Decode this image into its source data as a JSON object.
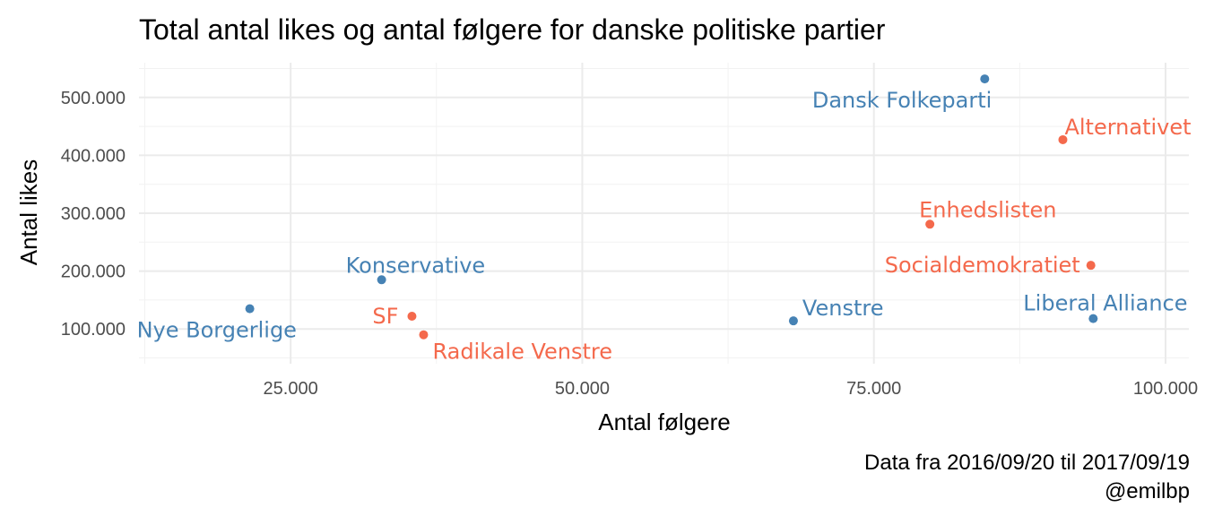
{
  "chart_data": {
    "type": "scatter",
    "title": "Total antal likes og antal følgere for danske politiske partier",
    "xlabel": "Antal følgere",
    "ylabel": "Antal likes",
    "xlim": [
      12000,
      102000
    ],
    "ylim": [
      40000,
      560000
    ],
    "x_ticks": [
      25000,
      50000,
      75000,
      100000
    ],
    "x_tick_labels": [
      "25.000",
      "50.000",
      "75.000",
      "100.000"
    ],
    "y_ticks": [
      100000,
      200000,
      300000,
      400000,
      500000
    ],
    "y_tick_labels": [
      "100.000",
      "200.000",
      "300.000",
      "400.000",
      "500.000"
    ],
    "grid": true,
    "legend": "none",
    "colors": {
      "blue": "#4682b4",
      "red": "#f4694c"
    },
    "points": [
      {
        "label": "Dansk Folkeparti",
        "x": 84500,
        "y": 532000,
        "color": "blue",
        "anchor": "end",
        "dx": 8,
        "dy": 32
      },
      {
        "label": "Alternativet",
        "x": 91200,
        "y": 427000,
        "color": "red",
        "anchor": "start",
        "dx": 2,
        "dy": -6
      },
      {
        "label": "Enhedslisten",
        "x": 79800,
        "y": 281000,
        "color": "red",
        "anchor": "start",
        "dx": -12,
        "dy": -8
      },
      {
        "label": "Socialdemokratiet",
        "x": 93600,
        "y": 210000,
        "color": "red",
        "anchor": "end",
        "dx": -12,
        "dy": 8
      },
      {
        "label": "Liberal Alliance",
        "x": 93800,
        "y": 118000,
        "color": "blue",
        "anchor": "start",
        "dx": -78,
        "dy": -9
      },
      {
        "label": "Venstre",
        "x": 68100,
        "y": 114000,
        "color": "blue",
        "anchor": "start",
        "dx": 10,
        "dy": -6
      },
      {
        "label": "Konservative",
        "x": 32800,
        "y": 185000,
        "color": "blue",
        "anchor": "start",
        "dx": -40,
        "dy": -8
      },
      {
        "label": "SF",
        "x": 35400,
        "y": 122000,
        "color": "red",
        "anchor": "end",
        "dx": -15,
        "dy": 8
      },
      {
        "label": "Radikale Venstre",
        "x": 36400,
        "y": 90000,
        "color": "red",
        "anchor": "start",
        "dx": 10,
        "dy": 27
      },
      {
        "label": "Nye Borgerlige",
        "x": 21500,
        "y": 135000,
        "color": "blue",
        "anchor": "start",
        "dx": -126,
        "dy": 32
      }
    ]
  },
  "caption": {
    "line1": "Data fra 2016/09/20 til 2017/09/19",
    "line2": "@emilbp"
  }
}
